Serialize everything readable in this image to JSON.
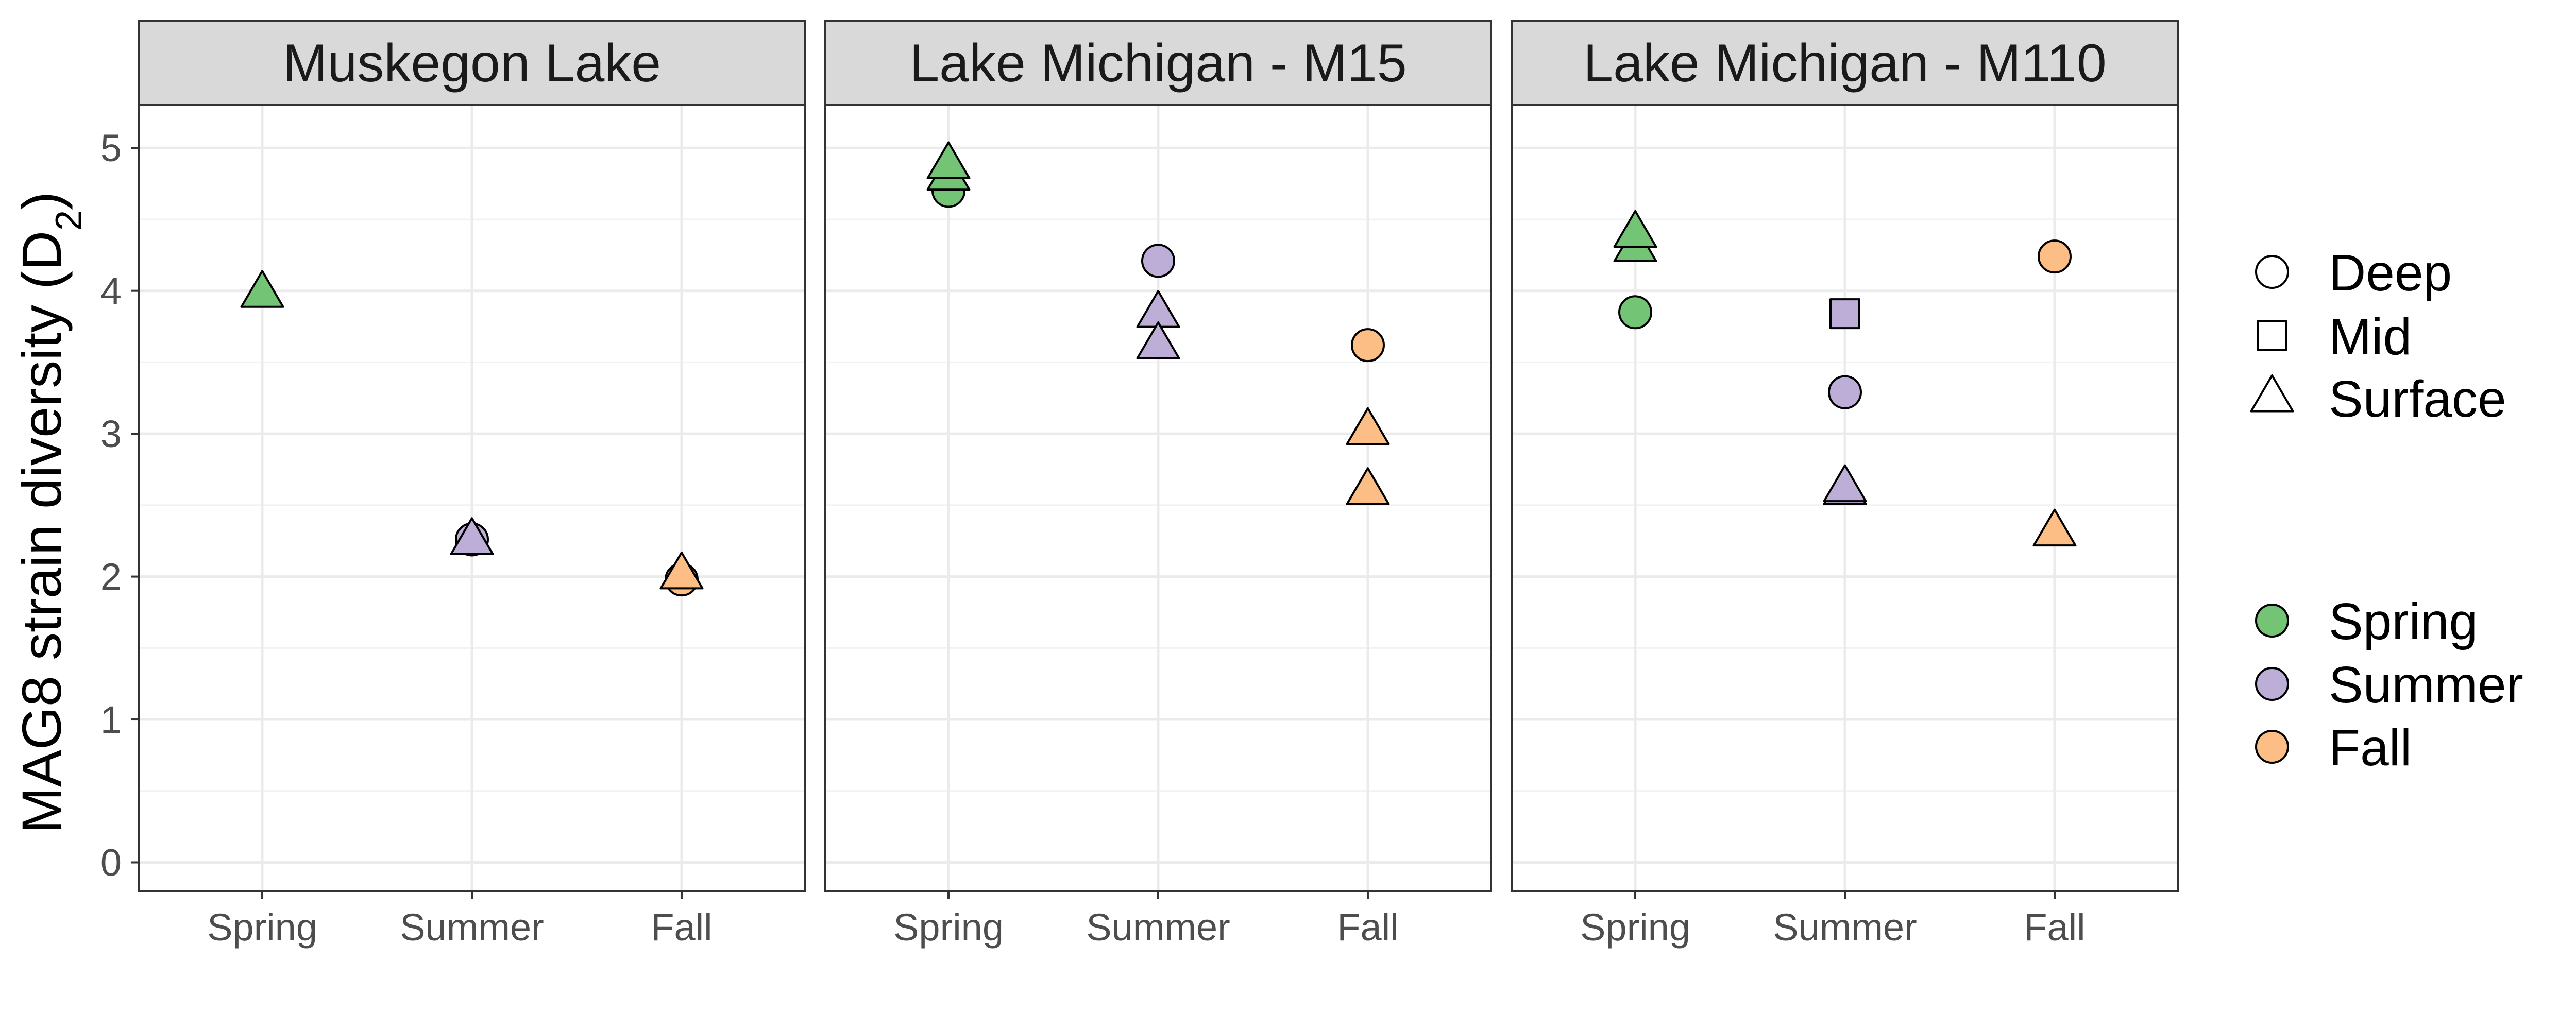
{
  "chart_data": {
    "type": "scatter",
    "facets": [
      "Muskegon Lake",
      "Lake Michigan - M15",
      "Lake Michigan - M110"
    ],
    "categories": [
      "Spring",
      "Summer",
      "Fall"
    ],
    "ylabel": "MAG8 strain diversity (D",
    "ylabel_sub": "2",
    "ylabel_close": ")",
    "ylim": [
      -0.2,
      5.3
    ],
    "yticks": [
      "0",
      "1",
      "2",
      "3",
      "4",
      "5"
    ],
    "grid": true,
    "legend_placement": "right",
    "depth_legend": [
      {
        "label": "Deep",
        "shape": "circle"
      },
      {
        "label": "Mid",
        "shape": "square"
      },
      {
        "label": "Surface",
        "shape": "triangle"
      }
    ],
    "season_legend": [
      {
        "label": "Spring",
        "color": "#74c476"
      },
      {
        "label": "Summer",
        "color": "#bcaed6"
      },
      {
        "label": "Fall",
        "color": "#fdbe85"
      }
    ],
    "points": [
      {
        "facet": "Muskegon Lake",
        "season": "Spring",
        "depth": "Surface",
        "y": 3.98
      },
      {
        "facet": "Muskegon Lake",
        "season": "Summer",
        "depth": "Deep",
        "y": 2.26
      },
      {
        "facet": "Muskegon Lake",
        "season": "Summer",
        "depth": "Surface",
        "y": 2.25
      },
      {
        "facet": "Muskegon Lake",
        "season": "Fall",
        "depth": "Deep",
        "y": 1.98
      },
      {
        "facet": "Muskegon Lake",
        "season": "Fall",
        "depth": "Surface",
        "y": 2.01
      },
      {
        "facet": "Lake Michigan - M15",
        "season": "Spring",
        "depth": "Deep",
        "y": 4.7
      },
      {
        "facet": "Lake Michigan - M15",
        "season": "Spring",
        "depth": "Surface",
        "y": 4.8
      },
      {
        "facet": "Lake Michigan - M15",
        "season": "Spring",
        "depth": "Surface",
        "y": 4.88
      },
      {
        "facet": "Lake Michigan - M15",
        "season": "Summer",
        "depth": "Deep",
        "y": 4.21
      },
      {
        "facet": "Lake Michigan - M15",
        "season": "Summer",
        "depth": "Surface",
        "y": 3.84
      },
      {
        "facet": "Lake Michigan - M15",
        "season": "Summer",
        "depth": "Surface",
        "y": 3.62
      },
      {
        "facet": "Lake Michigan - M15",
        "season": "Fall",
        "depth": "Deep",
        "y": 3.62
      },
      {
        "facet": "Lake Michigan - M15",
        "season": "Fall",
        "depth": "Surface",
        "y": 3.02
      },
      {
        "facet": "Lake Michigan - M15",
        "season": "Fall",
        "depth": "Surface",
        "y": 2.6
      },
      {
        "facet": "Lake Michigan - M110",
        "season": "Spring",
        "depth": "Surface",
        "y": 4.3
      },
      {
        "facet": "Lake Michigan - M110",
        "season": "Spring",
        "depth": "Surface",
        "y": 4.4
      },
      {
        "facet": "Lake Michigan - M110",
        "season": "Spring",
        "depth": "Deep",
        "y": 3.85
      },
      {
        "facet": "Lake Michigan - M110",
        "season": "Summer",
        "depth": "Mid",
        "y": 3.84
      },
      {
        "facet": "Lake Michigan - M110",
        "season": "Summer",
        "depth": "Deep",
        "y": 3.29
      },
      {
        "facet": "Lake Michigan - M110",
        "season": "Summer",
        "depth": "Surface",
        "y": 2.6
      },
      {
        "facet": "Lake Michigan - M110",
        "season": "Summer",
        "depth": "Surface",
        "y": 2.62
      },
      {
        "facet": "Lake Michigan - M110",
        "season": "Fall",
        "depth": "Deep",
        "y": 4.24
      },
      {
        "facet": "Lake Michigan - M110",
        "season": "Fall",
        "depth": "Surface",
        "y": 2.31
      }
    ]
  }
}
